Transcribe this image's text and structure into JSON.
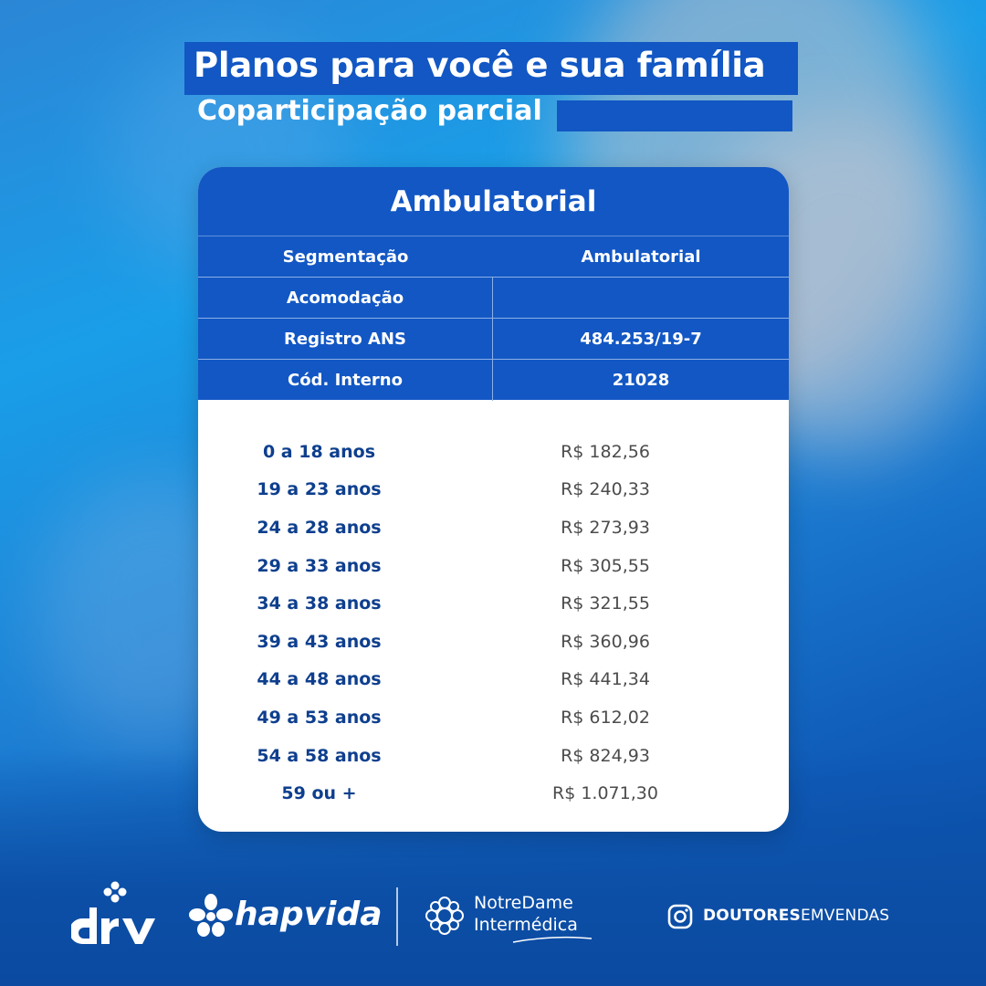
{
  "header": {
    "title": "Planos para você e sua família",
    "subtitle": "Coparticipação parcial"
  },
  "card": {
    "title": "Ambulatorial",
    "info_rows": [
      {
        "label": "Segmentação",
        "value": "Ambulatorial"
      },
      {
        "label": "Acomodação",
        "value": ""
      },
      {
        "label": "Registro ANS",
        "value": "484.253/19-7"
      },
      {
        "label": "Cód. Interno",
        "value": "21028"
      }
    ],
    "prices": [
      {
        "age": "0 a 18 anos",
        "price": "R$ 182,56"
      },
      {
        "age": "19 a 23 anos",
        "price": "R$ 240,33"
      },
      {
        "age": "24 a 28 anos",
        "price": "R$ 273,93"
      },
      {
        "age": "29 a 33 anos",
        "price": "R$ 305,55"
      },
      {
        "age": "34 a 38 anos",
        "price": "R$ 321,55"
      },
      {
        "age": "39 a 43 anos",
        "price": "R$ 360,96"
      },
      {
        "age": "44 a 48 anos",
        "price": "R$ 441,34"
      },
      {
        "age": "49 a 53 anos",
        "price": "R$ 612,02"
      },
      {
        "age": "54 a 58 anos",
        "price": "R$ 824,93"
      },
      {
        "age": "59 ou +",
        "price": "R$ 1.071,30"
      }
    ]
  },
  "footer": {
    "logo_drv": "drv",
    "logo_hapvida": "hapvida",
    "logo_notredame_line1": "NotreDame",
    "logo_notredame_line2": "Intermédica",
    "instagram_bold": "DOUTORES",
    "instagram_regular": "EMVENDAS",
    "icons": [
      "drv-logo-icon",
      "hapvida-flower-icon",
      "notredame-emblem-icon",
      "instagram-icon"
    ]
  },
  "colors": {
    "brand_blue": "#1257c4",
    "age_text": "#0e3f8e",
    "price_text": "#4c4c4c"
  }
}
